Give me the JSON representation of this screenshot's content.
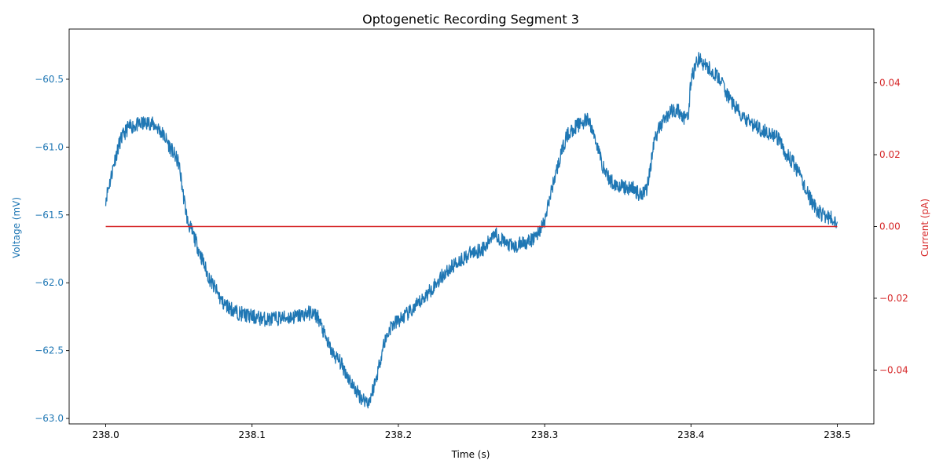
{
  "chart_data": {
    "type": "line",
    "title": "Optogenetic Recording Segment 3",
    "xlabel": "Time (s)",
    "xlim": [
      237.975,
      238.525
    ],
    "xticks": [
      238.0,
      238.1,
      238.2,
      238.3,
      238.4,
      238.5
    ],
    "xtick_labels": [
      "238.0",
      "238.1",
      "238.2",
      "238.3",
      "238.4",
      "238.5"
    ],
    "grid": false,
    "left_axis": {
      "label": "Voltage (mV)",
      "color": "#1f77b4",
      "ylim": [
        -63.04,
        -60.13
      ],
      "ticks": [
        -63.0,
        -62.5,
        -62.0,
        -61.5,
        -61.0,
        -60.5
      ],
      "tick_labels": [
        "−63.0",
        "−62.5",
        "−62.0",
        "−61.5",
        "−61.0",
        "−60.5"
      ]
    },
    "right_axis": {
      "label": "Current (pA)",
      "color": "#d62728",
      "ylim": [
        -0.055,
        0.055
      ],
      "ticks": [
        -0.04,
        -0.02,
        0.0,
        0.02,
        0.04
      ],
      "tick_labels": [
        "−0.04",
        "−0.02",
        "0.00",
        "0.02",
        "0.04"
      ]
    },
    "series": [
      {
        "axis": "left",
        "color": "#1f77b4",
        "x": [
          238.0,
          238.003,
          238.006,
          238.01,
          238.015,
          238.02,
          238.025,
          238.03,
          238.035,
          238.04,
          238.045,
          238.05,
          238.053,
          238.056,
          238.06,
          238.065,
          238.07,
          238.075,
          238.08,
          238.09,
          238.1,
          238.11,
          238.12,
          238.13,
          238.14,
          238.145,
          238.15,
          238.155,
          238.16,
          238.165,
          238.17,
          238.175,
          238.18,
          238.185,
          238.19,
          238.195,
          238.2,
          238.21,
          238.22,
          238.23,
          238.24,
          238.25,
          238.26,
          238.265,
          238.27,
          238.275,
          238.28,
          238.285,
          238.29,
          238.295,
          238.3,
          238.305,
          238.31,
          238.315,
          238.32,
          238.325,
          238.33,
          238.335,
          238.34,
          238.345,
          238.35,
          238.355,
          238.36,
          238.365,
          238.37,
          238.375,
          238.38,
          238.385,
          238.39,
          238.395,
          238.398,
          238.4,
          238.405,
          238.41,
          238.415,
          238.42,
          238.425,
          238.43,
          238.435,
          238.44,
          238.445,
          238.45,
          238.455,
          238.46,
          238.465,
          238.47,
          238.475,
          238.48,
          238.485,
          238.49,
          238.495,
          238.5
        ],
        "y": [
          -61.38,
          -61.25,
          -61.1,
          -60.95,
          -60.86,
          -60.84,
          -60.83,
          -60.82,
          -60.85,
          -60.92,
          -61.02,
          -61.12,
          -61.35,
          -61.55,
          -61.65,
          -61.8,
          -61.95,
          -62.05,
          -62.15,
          -62.22,
          -62.25,
          -62.27,
          -62.26,
          -62.25,
          -62.22,
          -62.25,
          -62.4,
          -62.52,
          -62.58,
          -62.68,
          -62.78,
          -62.85,
          -62.88,
          -62.7,
          -62.45,
          -62.32,
          -62.28,
          -62.2,
          -62.08,
          -61.95,
          -61.85,
          -61.78,
          -61.74,
          -61.62,
          -61.68,
          -61.72,
          -61.74,
          -61.7,
          -61.7,
          -61.64,
          -61.55,
          -61.3,
          -61.1,
          -60.92,
          -60.86,
          -60.82,
          -60.8,
          -60.95,
          -61.15,
          -61.25,
          -61.28,
          -61.3,
          -61.3,
          -61.35,
          -61.3,
          -60.95,
          -60.82,
          -60.75,
          -60.72,
          -60.78,
          -60.8,
          -60.5,
          -60.35,
          -60.4,
          -60.45,
          -60.5,
          -60.62,
          -60.7,
          -60.78,
          -60.82,
          -60.85,
          -60.88,
          -60.9,
          -60.95,
          -61.05,
          -61.12,
          -61.22,
          -61.35,
          -61.45,
          -61.5,
          -61.52,
          -61.55
        ]
      },
      {
        "axis": "right",
        "color": "#d62728",
        "x": [
          238.0,
          238.5
        ],
        "y": [
          0.0,
          0.0
        ]
      }
    ]
  }
}
